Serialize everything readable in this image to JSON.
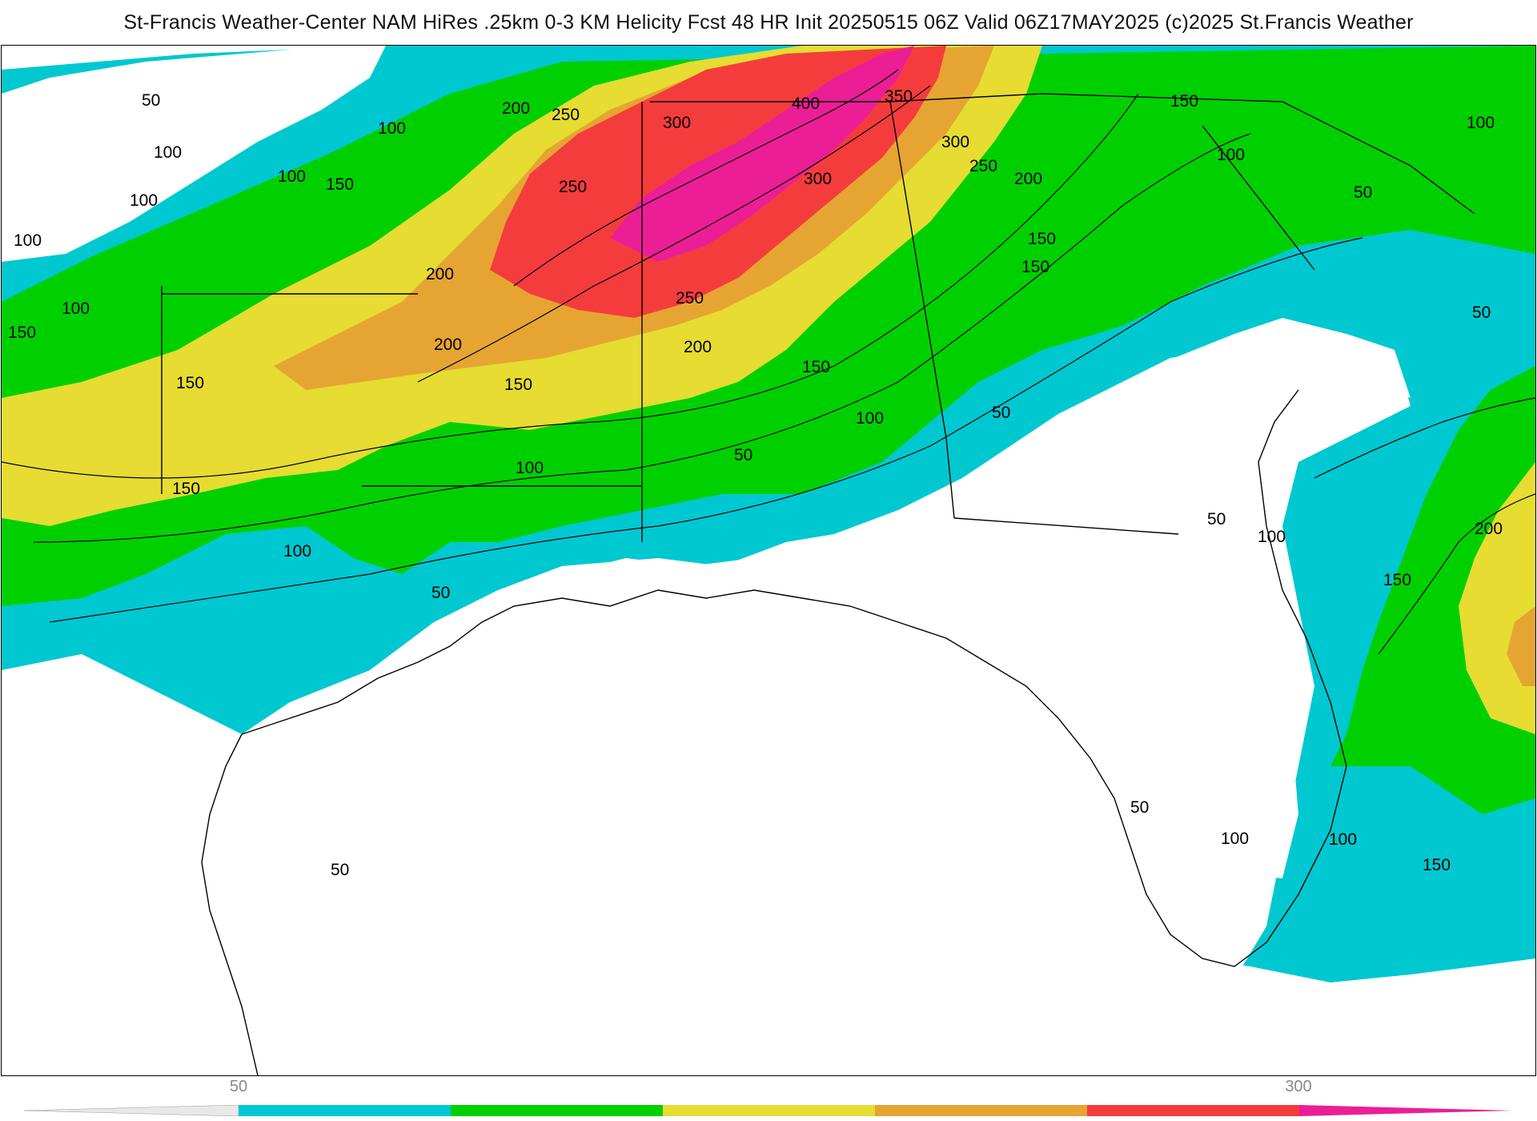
{
  "title": "St-Francis Weather-Center NAM HiRes .25km 0-3 KM Helicity Fcst 48 HR Init 20250515 06Z  Valid 06Z17MAY2025   (c)2025 St.Francis Weather",
  "colors": {
    "band_50": "#00c8d0",
    "band_100": "#00d000",
    "band_150": "#e6dc32",
    "band_200": "#e6a532",
    "band_250": "#f53c3c",
    "band_300": "#eb1e96",
    "background": "#ffffff"
  },
  "contour_labels": [
    "50",
    "100",
    "150",
    "200",
    "250",
    "300",
    "350",
    "400"
  ],
  "colorbar": {
    "ticks": [
      "50",
      "300"
    ],
    "segments": [
      "#00c8d0",
      "#00d000",
      "#e6dc32",
      "#e6a532",
      "#f53c3c",
      "#eb1e96"
    ]
  }
}
